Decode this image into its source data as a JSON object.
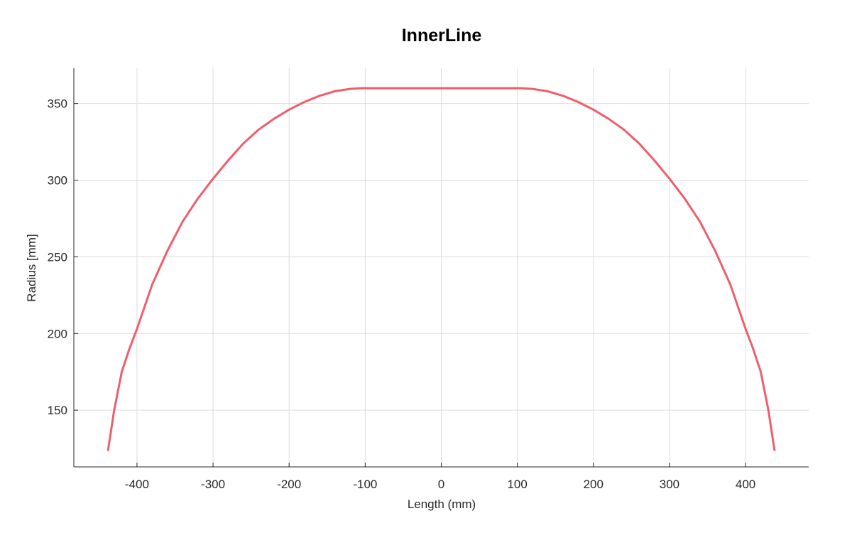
{
  "chart_data": {
    "type": "line",
    "title": "InnerLine",
    "xlabel": "Length (mm)",
    "ylabel": "Radius [mm]",
    "xlim": [
      -483,
      483
    ],
    "ylim": [
      113,
      373
    ],
    "xticks": [
      -400,
      -300,
      -200,
      -100,
      0,
      100,
      200,
      300,
      400
    ],
    "yticks": [
      150,
      200,
      250,
      300,
      350
    ],
    "xtick_labels": [
      "-400",
      "-300",
      "-200",
      "-100",
      "0",
      "100",
      "200",
      "300",
      "400"
    ],
    "ytick_labels": [
      "150",
      "200",
      "250",
      "300",
      "350"
    ],
    "grid": true,
    "legend": "none",
    "colors": {
      "line": "#ef5e6a",
      "grid": "#dcdcdc",
      "axis": "#262626"
    },
    "series": [
      {
        "x": [
          -438,
          -430,
          -420,
          -410,
          -400,
          -380,
          -360,
          -340,
          -320,
          -300,
          -280,
          -260,
          -240,
          -220,
          -200,
          -180,
          -160,
          -140,
          -120,
          -105,
          -80,
          -40,
          0,
          40,
          80,
          105,
          120,
          140,
          160,
          180,
          200,
          220,
          240,
          260,
          280,
          300,
          320,
          340,
          360,
          380,
          400,
          410,
          420,
          430,
          438
        ],
        "y": [
          124,
          150,
          175,
          190,
          203,
          232,
          254,
          273,
          288,
          301,
          313,
          324,
          333,
          340,
          346,
          351,
          355,
          358,
          359.5,
          360,
          360,
          360,
          360,
          360,
          360,
          360,
          359.5,
          358,
          355,
          351,
          346,
          340,
          333,
          324,
          313,
          301,
          288,
          273,
          254,
          232,
          203,
          190,
          175,
          150,
          124
        ]
      }
    ]
  }
}
